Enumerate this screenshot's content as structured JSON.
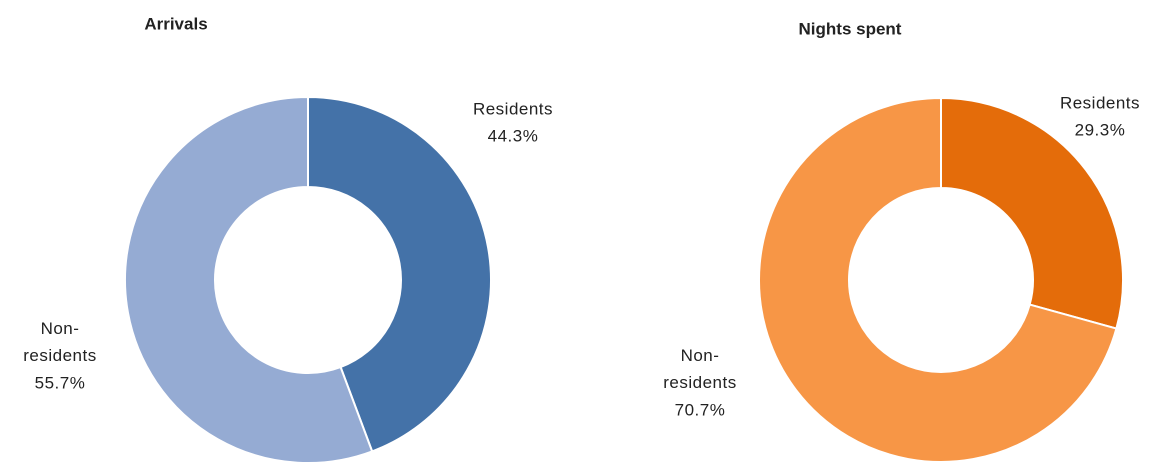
{
  "chart_data": [
    {
      "type": "pie",
      "title": "Arrivals",
      "donut": true,
      "categories": [
        "Residents",
        "Non-residents"
      ],
      "values": [
        44.3,
        55.7
      ],
      "value_labels": [
        "44.3%",
        "55.7%"
      ],
      "colors": [
        "#4472a8",
        "#95abd3"
      ]
    },
    {
      "type": "pie",
      "title": "Nights spent",
      "donut": true,
      "categories": [
        "Residents",
        "Non-residents"
      ],
      "values": [
        29.3,
        70.7
      ],
      "value_labels": [
        "29.3%",
        "70.7%"
      ],
      "colors": [
        "#e46c0a",
        "#f79646"
      ]
    }
  ]
}
